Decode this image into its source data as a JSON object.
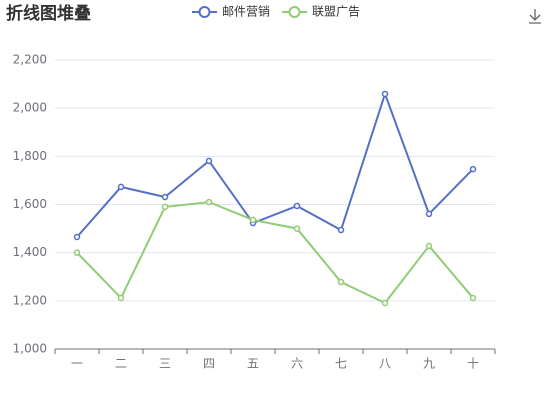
{
  "chart_data": {
    "type": "line",
    "title": "折线图堆叠",
    "categories": [
      "一",
      "二",
      "三",
      "四",
      "五",
      "六",
      "七",
      "八",
      "九",
      "十"
    ],
    "series": [
      {
        "name": "邮件营销",
        "color": "#5470c6",
        "values": [
          1465,
          1673,
          1631,
          1781,
          1523,
          1594,
          1494,
          2059,
          1561,
          1747
        ]
      },
      {
        "name": "联盟广告",
        "color": "#91cc75",
        "values": [
          1400,
          1212,
          1590,
          1610,
          1536,
          1500,
          1278,
          1191,
          1428,
          1212
        ]
      }
    ],
    "ylim": [
      1000,
      2200
    ],
    "yticks": [
      {
        "value": 1000,
        "label": "1,000"
      },
      {
        "value": 1200,
        "label": "1,200"
      },
      {
        "value": 1400,
        "label": "1,400"
      },
      {
        "value": 1600,
        "label": "1,600"
      },
      {
        "value": 1800,
        "label": "1,800"
      },
      {
        "value": 2000,
        "label": "2,000"
      },
      {
        "value": 2200,
        "label": "2,200"
      }
    ],
    "grid": true
  }
}
